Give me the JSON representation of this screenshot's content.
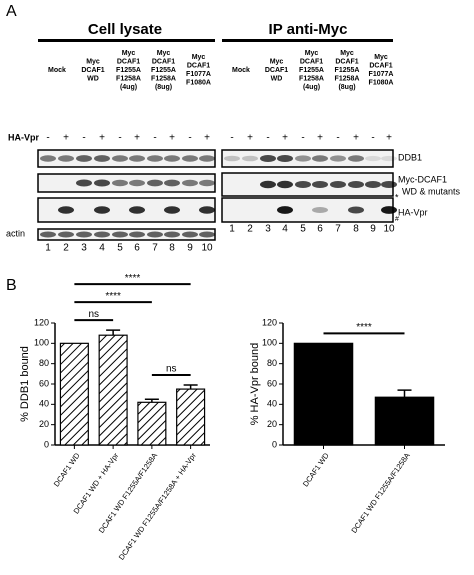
{
  "panel_a": {
    "label": "A",
    "headings": [
      "Cell lysate",
      "IP anti-Myc"
    ],
    "groups": [
      [
        "Mock"
      ],
      [
        "Myc",
        "DCAF1",
        "WD"
      ],
      [
        "Myc",
        "DCAF1",
        "F1255A",
        "F1258A",
        "(4ug)"
      ],
      [
        "Myc",
        "DCAF1",
        "F1255A",
        "F1258A",
        "(8ug)"
      ],
      [
        "Myc",
        "DCAF1",
        "F1077A",
        "F1080A"
      ]
    ],
    "treatment": "HA-Vpr",
    "signs": [
      "-",
      "+"
    ],
    "lanes": [
      1,
      2,
      3,
      4,
      5,
      6,
      7,
      8,
      9,
      10
    ],
    "blot_labels": [
      [
        "DDB1"
      ],
      [
        "Myc-DCAF1",
        "WD & mutants"
      ],
      [
        "HA-Vpr"
      ]
    ],
    "loading": "actin",
    "markers": [
      "*",
      "#"
    ]
  },
  "panel_b": {
    "label": "B"
  },
  "chart_data": [
    {
      "type": "bar",
      "ylabel": "% DDB1 bound",
      "categories": [
        "DCAF1 WD",
        "DCAF1 WD + HA-Vpr",
        "DCAF1 WD F1255A/F1258A",
        "DCAF1 WD F1255A/F1258A + HA-Vpr"
      ],
      "values": [
        100,
        108,
        42,
        55
      ],
      "errors": [
        0,
        5,
        3,
        4
      ],
      "ylim": [
        0,
        120
      ],
      "yticks": [
        0,
        20,
        40,
        60,
        80,
        100,
        120
      ],
      "fill": "hatch",
      "color": "#000000",
      "annotations": [
        {
          "text": "ns",
          "between": [
            0,
            1
          ]
        },
        {
          "text": "ns",
          "between": [
            2,
            3
          ]
        },
        {
          "text": "****",
          "between": [
            0,
            2
          ]
        },
        {
          "text": "****",
          "between": [
            0,
            3
          ]
        }
      ]
    },
    {
      "type": "bar",
      "ylabel": "% HA-Vpr bound",
      "categories": [
        "DCAF1 WD",
        "DCAF1 WD F1255A/F1258A"
      ],
      "values": [
        100,
        47
      ],
      "errors": [
        0,
        7
      ],
      "ylim": [
        0,
        120
      ],
      "yticks": [
        0,
        20,
        40,
        60,
        80,
        100,
        120
      ],
      "fill": "solid",
      "color": "#000000",
      "annotations": [
        {
          "text": "****",
          "between": [
            0,
            1
          ]
        }
      ]
    }
  ]
}
